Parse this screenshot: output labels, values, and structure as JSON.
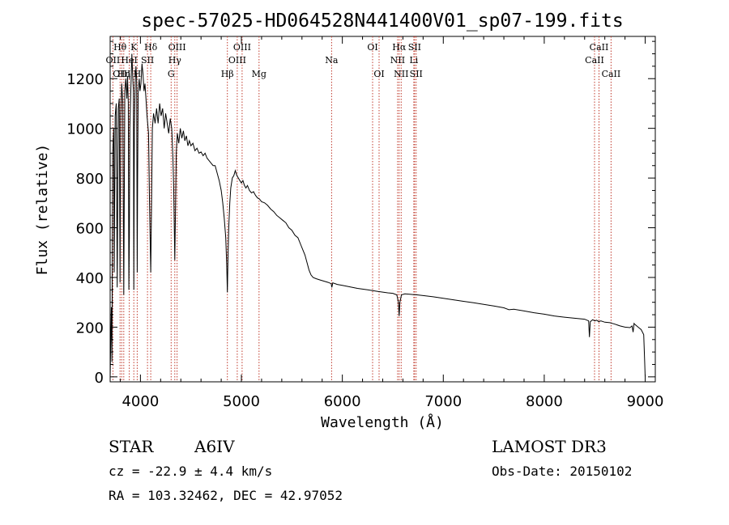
{
  "chart_data": {
    "type": "line",
    "title": "spec-57025-HD064528N441400V01_sp07-199.fits",
    "xlabel": "Wavelength (Å)",
    "ylabel": "Flux (relative)",
    "xlim": [
      3700,
      9100
    ],
    "ylim": [
      -20,
      1370
    ],
    "x_ticks": [
      4000,
      5000,
      6000,
      7000,
      8000,
      9000
    ],
    "y_ticks": [
      0,
      200,
      400,
      600,
      800,
      1000,
      1200
    ],
    "grid": false,
    "series": [
      {
        "name": "flux",
        "points": [
          [
            3700,
            0
          ],
          [
            3705,
            120
          ],
          [
            3712,
            280
          ],
          [
            3718,
            60
          ],
          [
            3725,
            900
          ],
          [
            3735,
            1000
          ],
          [
            3740,
            420
          ],
          [
            3750,
            1050
          ],
          [
            3760,
            1100
          ],
          [
            3770,
            360
          ],
          [
            3780,
            1080
          ],
          [
            3790,
            1120
          ],
          [
            3798,
            380
          ],
          [
            3805,
            1050
          ],
          [
            3815,
            1180
          ],
          [
            3825,
            1100
          ],
          [
            3835,
            330
          ],
          [
            3845,
            1150
          ],
          [
            3855,
            1200
          ],
          [
            3865,
            1120
          ],
          [
            3872,
            1210
          ],
          [
            3880,
            1100
          ],
          [
            3885,
            350
          ],
          [
            3890,
            560
          ],
          [
            3895,
            1000
          ],
          [
            3905,
            1150
          ],
          [
            3915,
            1300
          ],
          [
            3925,
            1200
          ],
          [
            3930,
            1150
          ],
          [
            3934,
            350
          ],
          [
            3940,
            1000
          ],
          [
            3948,
            1180
          ],
          [
            3955,
            1250
          ],
          [
            3962,
            1200
          ],
          [
            3968,
            420
          ],
          [
            3972,
            800
          ],
          [
            3978,
            1150
          ],
          [
            3988,
            1200
          ],
          [
            3995,
            1150
          ],
          [
            4005,
            1180
          ],
          [
            4015,
            1260
          ],
          [
            4025,
            1220
          ],
          [
            4035,
            1150
          ],
          [
            4045,
            1180
          ],
          [
            4055,
            1120
          ],
          [
            4065,
            1050
          ],
          [
            4080,
            980
          ],
          [
            4090,
            700
          ],
          [
            4102,
            420
          ],
          [
            4110,
            700
          ],
          [
            4118,
            1000
          ],
          [
            4130,
            1060
          ],
          [
            4145,
            1020
          ],
          [
            4160,
            1080
          ],
          [
            4175,
            1020
          ],
          [
            4190,
            1100
          ],
          [
            4205,
            1050
          ],
          [
            4220,
            1080
          ],
          [
            4235,
            1000
          ],
          [
            4250,
            1060
          ],
          [
            4265,
            1020
          ],
          [
            4280,
            980
          ],
          [
            4295,
            1040
          ],
          [
            4310,
            1000
          ],
          [
            4322,
            880
          ],
          [
            4330,
            750
          ],
          [
            4340,
            470
          ],
          [
            4348,
            700
          ],
          [
            4355,
            900
          ],
          [
            4365,
            980
          ],
          [
            4380,
            940
          ],
          [
            4395,
            1000
          ],
          [
            4410,
            960
          ],
          [
            4425,
            990
          ],
          [
            4440,
            950
          ],
          [
            4455,
            970
          ],
          [
            4470,
            930
          ],
          [
            4485,
            950
          ],
          [
            4500,
            930
          ],
          [
            4520,
            940
          ],
          [
            4540,
            910
          ],
          [
            4560,
            920
          ],
          [
            4580,
            900
          ],
          [
            4600,
            905
          ],
          [
            4620,
            890
          ],
          [
            4640,
            900
          ],
          [
            4660,
            880
          ],
          [
            4680,
            870
          ],
          [
            4700,
            860
          ],
          [
            4720,
            850
          ],
          [
            4740,
            850
          ],
          [
            4760,
            820
          ],
          [
            4780,
            790
          ],
          [
            4800,
            750
          ],
          [
            4815,
            700
          ],
          [
            4830,
            640
          ],
          [
            4845,
            560
          ],
          [
            4855,
            450
          ],
          [
            4861,
            340
          ],
          [
            4867,
            470
          ],
          [
            4875,
            600
          ],
          [
            4885,
            700
          ],
          [
            4895,
            760
          ],
          [
            4910,
            800
          ],
          [
            4925,
            810
          ],
          [
            4940,
            830
          ],
          [
            4955,
            810
          ],
          [
            4970,
            800
          ],
          [
            4985,
            790
          ],
          [
            5000,
            780
          ],
          [
            5015,
            790
          ],
          [
            5030,
            770
          ],
          [
            5045,
            760
          ],
          [
            5060,
            770
          ],
          [
            5080,
            750
          ],
          [
            5100,
            740
          ],
          [
            5120,
            745
          ],
          [
            5140,
            730
          ],
          [
            5160,
            720
          ],
          [
            5180,
            715
          ],
          [
            5200,
            705
          ],
          [
            5230,
            700
          ],
          [
            5260,
            690
          ],
          [
            5290,
            675
          ],
          [
            5320,
            665
          ],
          [
            5350,
            650
          ],
          [
            5380,
            640
          ],
          [
            5410,
            630
          ],
          [
            5440,
            620
          ],
          [
            5470,
            600
          ],
          [
            5500,
            590
          ],
          [
            5530,
            570
          ],
          [
            5560,
            560
          ],
          [
            5590,
            530
          ],
          [
            5610,
            510
          ],
          [
            5630,
            490
          ],
          [
            5650,
            460
          ],
          [
            5670,
            430
          ],
          [
            5690,
            410
          ],
          [
            5710,
            400
          ],
          [
            5740,
            395
          ],
          [
            5780,
            390
          ],
          [
            5820,
            385
          ],
          [
            5860,
            380
          ],
          [
            5890,
            375
          ],
          [
            5896,
            360
          ],
          [
            5905,
            378
          ],
          [
            5950,
            372
          ],
          [
            6000,
            368
          ],
          [
            6050,
            364
          ],
          [
            6100,
            360
          ],
          [
            6150,
            356
          ],
          [
            6200,
            353
          ],
          [
            6250,
            350
          ],
          [
            6300,
            347
          ],
          [
            6350,
            344
          ],
          [
            6400,
            341
          ],
          [
            6450,
            338
          ],
          [
            6500,
            336
          ],
          [
            6540,
            330
          ],
          [
            6556,
            300
          ],
          [
            6563,
            245
          ],
          [
            6570,
            300
          ],
          [
            6585,
            330
          ],
          [
            6620,
            334
          ],
          [
            6680,
            332
          ],
          [
            6740,
            330
          ],
          [
            6800,
            327
          ],
          [
            6900,
            322
          ],
          [
            7000,
            316
          ],
          [
            7100,
            310
          ],
          [
            7200,
            304
          ],
          [
            7300,
            298
          ],
          [
            7400,
            292
          ],
          [
            7500,
            285
          ],
          [
            7600,
            278
          ],
          [
            7650,
            270
          ],
          [
            7700,
            272
          ],
          [
            7800,
            265
          ],
          [
            7900,
            258
          ],
          [
            8000,
            252
          ],
          [
            8100,
            245
          ],
          [
            8200,
            240
          ],
          [
            8300,
            236
          ],
          [
            8400,
            232
          ],
          [
            8440,
            225
          ],
          [
            8448,
            160
          ],
          [
            8456,
            222
          ],
          [
            8480,
            230
          ],
          [
            8500,
            225
          ],
          [
            8520,
            228
          ],
          [
            8540,
            222
          ],
          [
            8560,
            225
          ],
          [
            8600,
            220
          ],
          [
            8650,
            218
          ],
          [
            8700,
            212
          ],
          [
            8750,
            205
          ],
          [
            8800,
            200
          ],
          [
            8850,
            198
          ],
          [
            8870,
            205
          ],
          [
            8880,
            180
          ],
          [
            8890,
            215
          ],
          [
            8900,
            210
          ],
          [
            8930,
            200
          ],
          [
            8960,
            190
          ],
          [
            8985,
            170
          ],
          [
            8995,
            60
          ],
          [
            9000,
            0
          ]
        ]
      }
    ],
    "spectral_lines": [
      {
        "label": "OII",
        "wavelength": 3727,
        "row": 2
      },
      {
        "label": "Hθ",
        "wavelength": 3798,
        "row": 1
      },
      {
        "label": "OIII",
        "wavelength": 3815,
        "row": 3
      },
      {
        "label": "Hη",
        "wavelength": 3835,
        "row": 3
      },
      {
        "label": "HeI",
        "wavelength": 3889,
        "row": 2
      },
      {
        "label": "K",
        "wavelength": 3934,
        "row": 1
      },
      {
        "label": "H",
        "wavelength": 3968,
        "row": 3
      },
      {
        "label": "SII",
        "wavelength": 4070,
        "row": 2
      },
      {
        "label": "Hδ",
        "wavelength": 4102,
        "row": 1
      },
      {
        "label": "G",
        "wavelength": 4304,
        "row": 3
      },
      {
        "label": "Hγ",
        "wavelength": 4340,
        "row": 2
      },
      {
        "label": "OIII",
        "wavelength": 4363,
        "row": 1
      },
      {
        "label": "Hβ",
        "wavelength": 4861,
        "row": 3
      },
      {
        "label": "OIII",
        "wavelength": 4959,
        "row": 2
      },
      {
        "label": "OIII",
        "wavelength": 5007,
        "row": 1
      },
      {
        "label": "Mg",
        "wavelength": 5175,
        "row": 3
      },
      {
        "label": "Na",
        "wavelength": 5894,
        "row": 2
      },
      {
        "label": "OI",
        "wavelength": 6300,
        "row": 1
      },
      {
        "label": "OI",
        "wavelength": 6364,
        "row": 3
      },
      {
        "label": "NII",
        "wavelength": 6548,
        "row": 2
      },
      {
        "label": "Hα",
        "wavelength": 6563,
        "row": 1
      },
      {
        "label": "NII",
        "wavelength": 6583,
        "row": 3
      },
      {
        "label": "SII",
        "wavelength": 6716,
        "row": 1
      },
      {
        "label": "SII",
        "wavelength": 6731,
        "row": 3
      },
      {
        "label": "Li",
        "wavelength": 6708,
        "row": 2
      },
      {
        "label": "CaII",
        "wavelength": 8498,
        "row": 2
      },
      {
        "label": "CaII",
        "wavelength": 8542,
        "row": 1
      },
      {
        "label": "CaII",
        "wavelength": 8662,
        "row": 3
      }
    ]
  },
  "info": {
    "object_class": "STAR",
    "subclass": "A6IV",
    "survey": "LAMOST DR3",
    "redshift_text": "cz = -22.9 ± 4.4 km/s",
    "coordinates_text": "RA = 103.32462, DEC =  42.97052",
    "obs_date_text": "Obs-Date: 20150102"
  },
  "colors": {
    "line": "#000000",
    "marker": "#c0392b",
    "axis": "#000000"
  }
}
